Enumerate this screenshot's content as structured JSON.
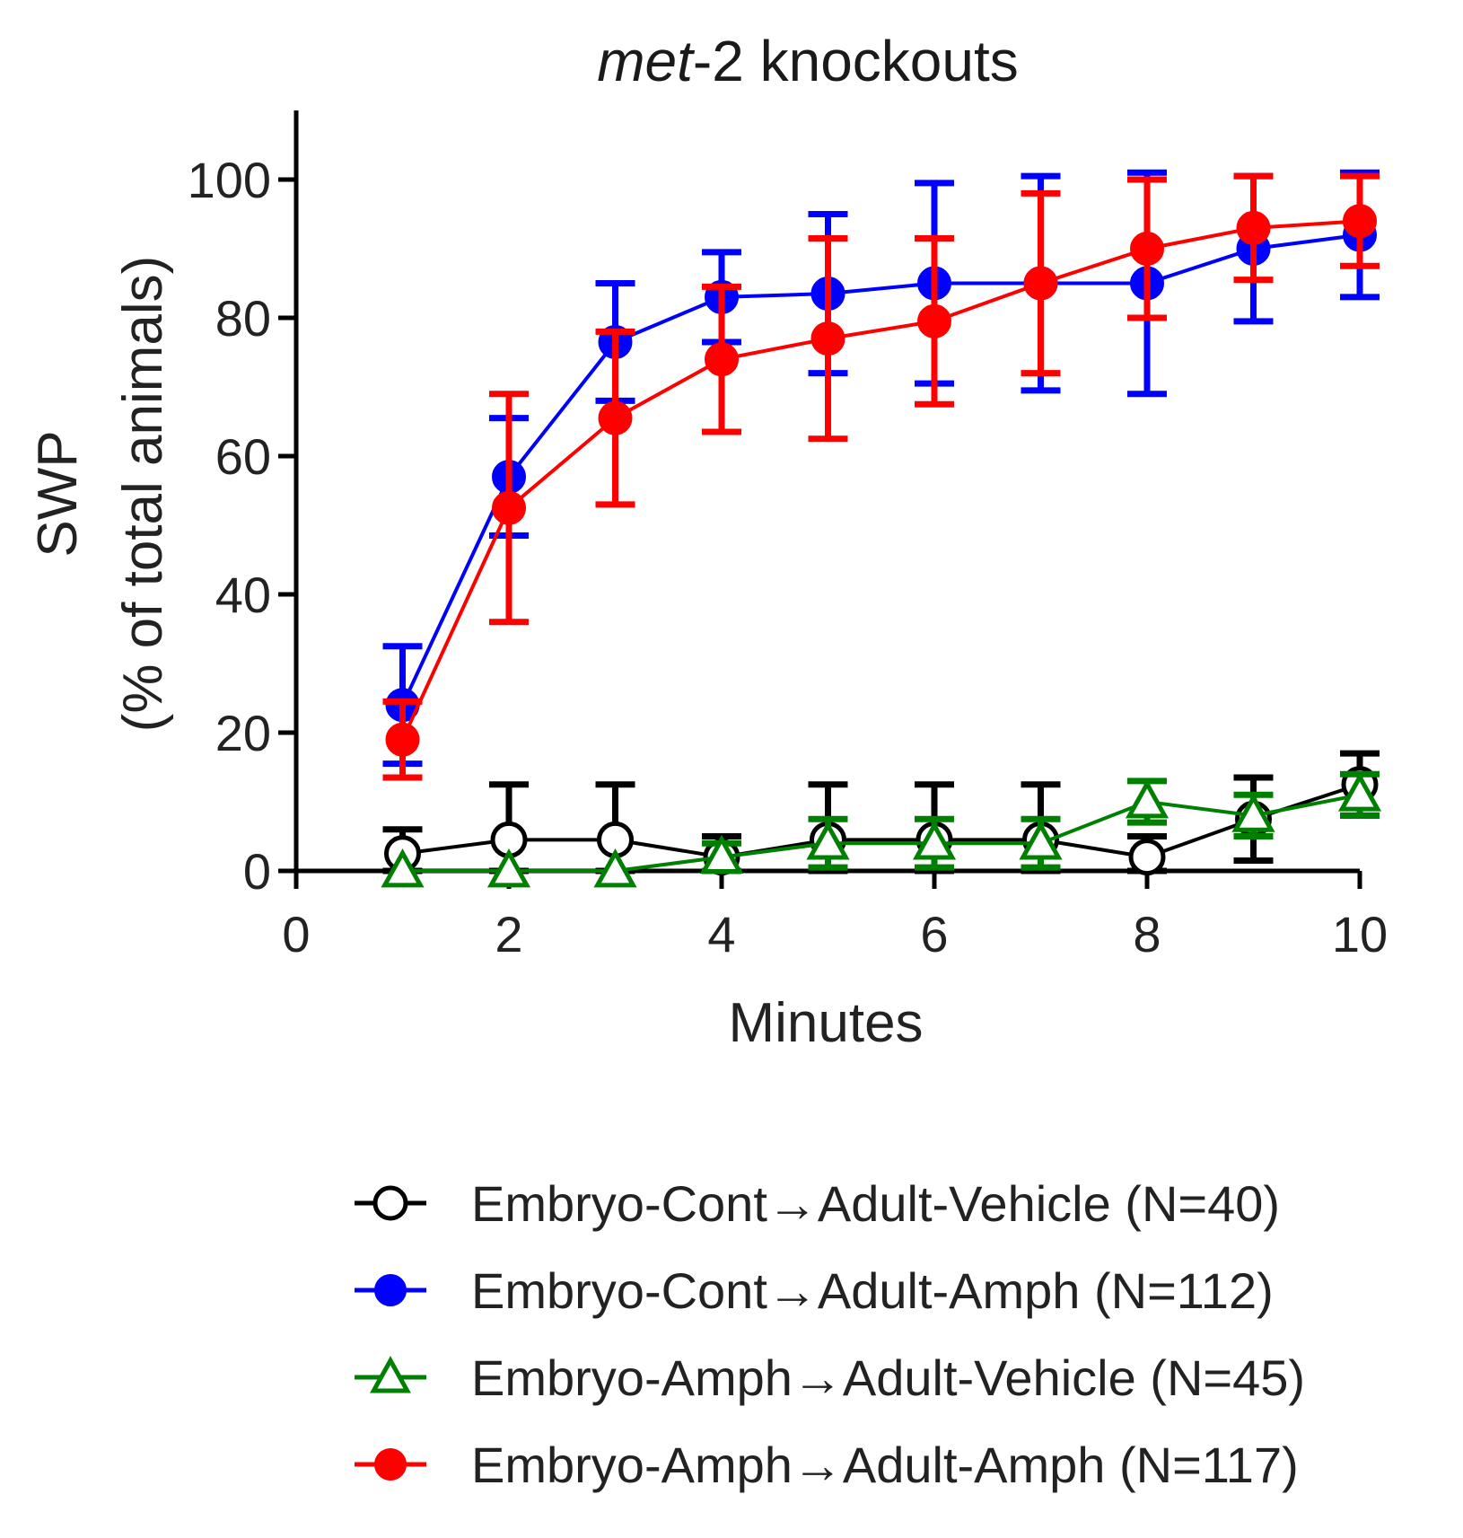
{
  "chart_data": {
    "type": "line",
    "title_italic": "met",
    "title_rest": "-2 knockouts",
    "xlabel": "Minutes",
    "ylabel_line1": "SWP",
    "ylabel_line2": "(% of total animals)",
    "xlim": [
      0,
      10
    ],
    "ylim": [
      0,
      110
    ],
    "xticks": [
      0,
      2,
      4,
      6,
      8,
      10
    ],
    "yticks": [
      0,
      20,
      40,
      60,
      80,
      100
    ],
    "x": [
      1,
      2,
      3,
      4,
      5,
      6,
      7,
      8,
      9,
      10
    ],
    "series": [
      {
        "name": "Embryo-Cont→Adult-Vehicle (N=40)",
        "color": "#000000",
        "marker": "open-circle",
        "values": [
          2.5,
          4.5,
          4.5,
          2,
          4.5,
          4.5,
          4.5,
          2,
          7.5,
          12.5
        ],
        "errors": [
          3.5,
          8,
          8,
          3,
          8,
          8,
          8,
          3,
          6,
          4.5
        ]
      },
      {
        "name": "Embryo-Cont→Adult-Amph (N=112)",
        "color": "#0000ff",
        "marker": "filled-circle",
        "values": [
          24,
          57,
          76.5,
          83,
          83.5,
          85,
          85,
          85,
          90,
          92
        ],
        "errors": [
          8.5,
          8.5,
          8.5,
          6.5,
          11.5,
          14.5,
          15.5,
          16,
          10.5,
          9
        ]
      },
      {
        "name": "Embryo-Amph→Adult-Vehicle (N=45)",
        "color": "#008000",
        "marker": "open-triangle",
        "values": [
          0,
          0,
          0,
          2,
          4,
          4,
          4,
          10,
          8,
          11
        ],
        "errors": [
          0,
          0,
          0,
          2,
          3.5,
          3.5,
          3.5,
          3,
          3,
          3
        ]
      },
      {
        "name": "Embryo-Amph→Adult-Amph (N=117)",
        "color": "#ff0000",
        "marker": "filled-circle",
        "values": [
          19,
          52.5,
          65.5,
          74,
          77,
          79.5,
          85,
          90,
          93,
          94
        ],
        "errors": [
          5.5,
          16.5,
          12.5,
          10.5,
          14.5,
          12,
          13,
          10,
          7.5,
          6.5
        ]
      }
    ],
    "legend_position": "bottom"
  }
}
